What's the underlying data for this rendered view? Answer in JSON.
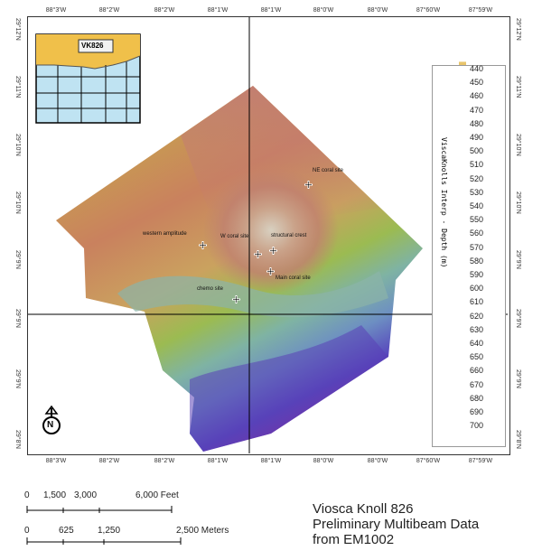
{
  "map": {
    "top_ticks": [
      "88°3'W",
      "88°2'W",
      "88°2'W",
      "88°1'W",
      "88°1'W",
      "88°0'W",
      "88°0'W",
      "87°60'W",
      "87°59'W"
    ],
    "bottom_ticks": [
      "88°3'W",
      "88°2'W",
      "88°2'W",
      "88°1'W",
      "88°1'W",
      "88°0'W",
      "88°0'W",
      "87°60'W",
      "87°59'W"
    ],
    "left_ticks": [
      "29°12'N",
      "29°11'N",
      "29°10'N",
      "29°10'N",
      "29°9'N",
      "29°9'N",
      "29°9'N",
      "29°8'N"
    ],
    "right_ticks": [
      "29°12'N",
      "29°11'N",
      "29°10'N",
      "29°10'N",
      "29°9'N",
      "29°9'N",
      "29°9'N",
      "29°8'N"
    ],
    "inset_label": "VK826",
    "sites": [
      {
        "label": "NE coral site"
      },
      {
        "label": "western amplitude"
      },
      {
        "label": "W coral site"
      },
      {
        "label": "structural crest"
      },
      {
        "label": "Main coral site"
      },
      {
        "label": "chemo site"
      }
    ],
    "north_label": "N"
  },
  "legend": {
    "title": "ViscaKnolls Interp - Depth (m)",
    "depths": [
      "440",
      "450",
      "460",
      "470",
      "480",
      "490",
      "500",
      "510",
      "520",
      "530",
      "540",
      "550",
      "560",
      "570",
      "580",
      "590",
      "600",
      "610",
      "620",
      "630",
      "640",
      "650",
      "660",
      "670",
      "680",
      "690",
      "700"
    ],
    "colors": [
      "#e8c46a",
      "#e2b863",
      "#dcaa5e",
      "#d69e5c",
      "#cf925c",
      "#c98a60",
      "#c48566",
      "#c0806b",
      "#c07f6f",
      "#c88a66",
      "#d4a05a",
      "#ddb44f",
      "#d9c24b",
      "#bcc146",
      "#99bb50",
      "#86b36d",
      "#7fb08b",
      "#86b6a8",
      "#7ea9bb",
      "#6c8fc2",
      "#5b6ec4",
      "#5457c0",
      "#5840b8",
      "#6730ae",
      "#7d24a5",
      "#962098",
      "#ad1b86"
    ]
  },
  "scalebar": {
    "feet_ticks": [
      "0",
      "1,500",
      "3,000",
      "6,000 Feet"
    ],
    "meter_ticks": [
      "0",
      "625",
      "1,250",
      "2,500 Meters"
    ]
  },
  "caption": {
    "line1": "Viosca Knoll 826",
    "line2": "Preliminary Multibeam Data",
    "line3": "from EM1002"
  }
}
